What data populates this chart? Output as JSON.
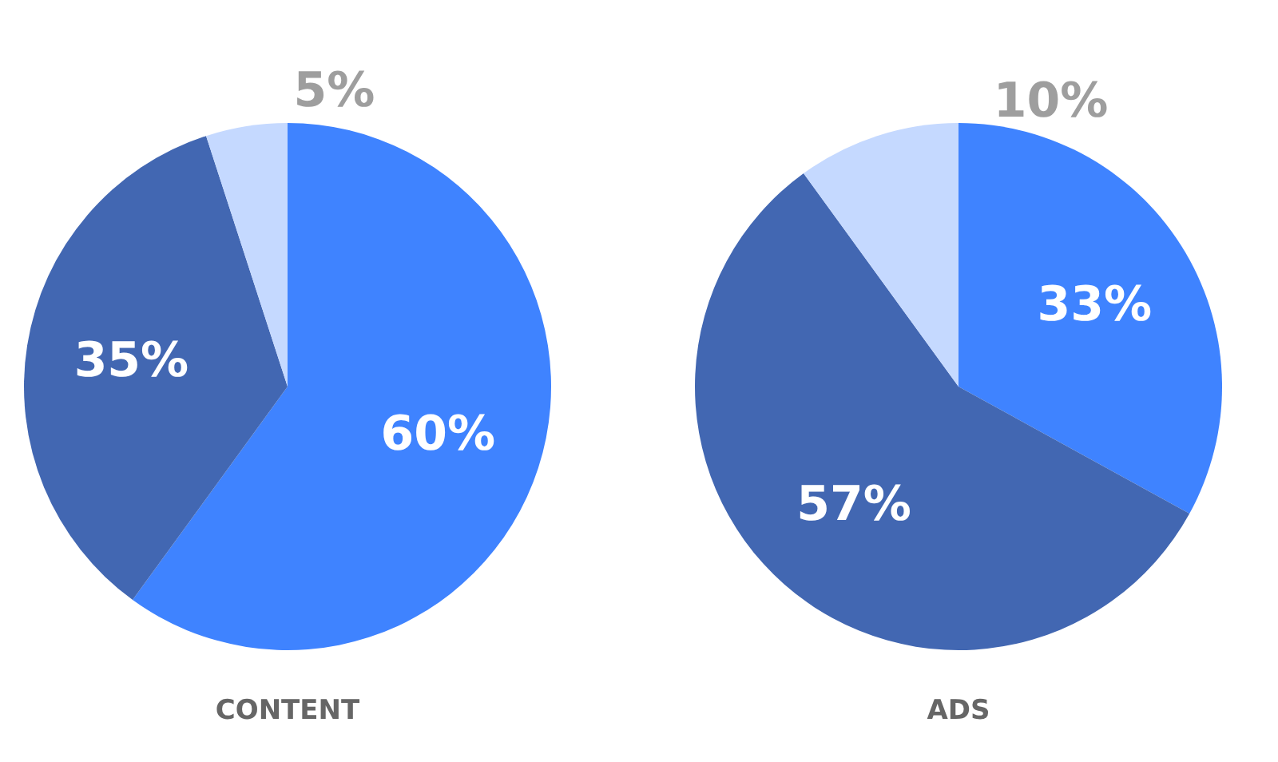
{
  "chart_data": [
    {
      "type": "pie",
      "title": "CONTENT",
      "categories": [
        null,
        null,
        null
      ],
      "values": [
        60,
        35,
        5
      ],
      "colors": [
        "#3f83ff",
        "#4267b2",
        "#c5d9ff"
      ],
      "value_labels": [
        "60%",
        "35%",
        "5%"
      ]
    },
    {
      "type": "pie",
      "title": "ADS",
      "categories": [
        null,
        null,
        null
      ],
      "values": [
        33,
        57,
        10
      ],
      "colors": [
        "#3f83ff",
        "#4267b2",
        "#c5d9ff"
      ],
      "value_labels": [
        "33%",
        "57%",
        "10%"
      ]
    }
  ]
}
